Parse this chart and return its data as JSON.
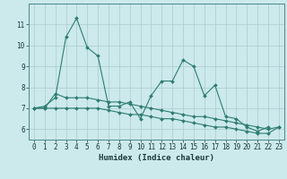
{
  "title": "",
  "xlabel": "Humidex (Indice chaleur)",
  "ylabel": "",
  "bg_color": "#cce9ec",
  "grid_color": "#aacccc",
  "line_color": "#2e7d72",
  "x": [
    0,
    1,
    2,
    3,
    4,
    5,
    6,
    7,
    8,
    9,
    10,
    11,
    12,
    13,
    14,
    15,
    16,
    17,
    18,
    19,
    20,
    21,
    22,
    23
  ],
  "line1": [
    7.0,
    7.1,
    7.5,
    10.4,
    11.3,
    9.9,
    9.5,
    7.1,
    7.1,
    7.3,
    6.5,
    7.6,
    8.3,
    8.3,
    9.3,
    9.0,
    7.6,
    8.1,
    6.6,
    6.5,
    6.1,
    5.9,
    6.1,
    null
  ],
  "line2": [
    7.0,
    7.0,
    7.7,
    7.5,
    7.5,
    7.5,
    7.4,
    7.3,
    7.3,
    7.2,
    7.1,
    7.0,
    6.9,
    6.8,
    6.7,
    6.6,
    6.6,
    6.5,
    6.4,
    6.3,
    6.2,
    6.1,
    6.0,
    6.1
  ],
  "line3": [
    7.0,
    7.0,
    7.0,
    7.0,
    7.0,
    7.0,
    7.0,
    6.9,
    6.8,
    6.7,
    6.7,
    6.6,
    6.5,
    6.5,
    6.4,
    6.3,
    6.2,
    6.1,
    6.1,
    6.0,
    5.9,
    5.8,
    5.8,
    6.1
  ],
  "ylim": [
    5.5,
    12.0
  ],
  "yticks": [
    6,
    7,
    8,
    9,
    10,
    11
  ],
  "xlim": [
    -0.5,
    23.5
  ],
  "tick_fontsize": 5.5,
  "xlabel_fontsize": 6.5
}
